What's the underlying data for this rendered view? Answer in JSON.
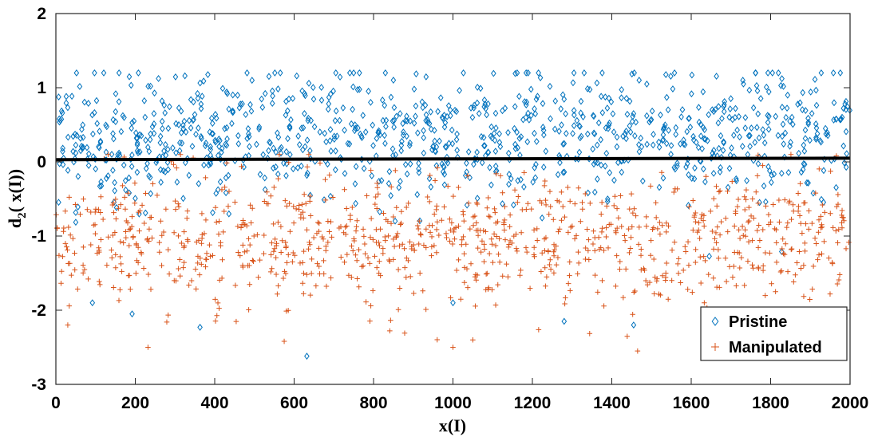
{
  "chart_data": {
    "type": "scatter",
    "title": "",
    "xlabel": "x(I)",
    "ylabel_main": "d",
    "ylabel_sub": "2",
    "ylabel_rest": "( x(I))",
    "xlim": [
      0,
      2000
    ],
    "ylim": [
      -3,
      2
    ],
    "xticks": [
      "0",
      "200",
      "400",
      "600",
      "800",
      "1000",
      "1200",
      "1400",
      "1600",
      "1800",
      "2000"
    ],
    "yticks": [
      "2",
      "1",
      "0",
      "-1",
      "-2",
      "-3"
    ],
    "threshold": {
      "y_start": 0.03,
      "y_end": 0.05,
      "color": "#000000"
    },
    "legend_position": "bottom-right",
    "series": [
      {
        "name": "Pristine",
        "marker": "diamond",
        "color": "#0072BD",
        "count": 1000,
        "center": 0.35,
        "spread": 0.45,
        "min": -2.62,
        "max": 1.2,
        "outliers": [
          {
            "x": 325,
            "y": 1.16
          },
          {
            "x": 705,
            "y": 1.2
          },
          {
            "x": 1730,
            "y": 1.1
          },
          {
            "x": 494,
            "y": 1.1
          },
          {
            "x": 632,
            "y": -2.62
          },
          {
            "x": 363,
            "y": -2.23
          },
          {
            "x": 1280,
            "y": -2.15
          },
          {
            "x": 1455,
            "y": -2.2
          },
          {
            "x": 192,
            "y": -2.05
          },
          {
            "x": 1000,
            "y": -1.9
          },
          {
            "x": 92,
            "y": -1.9
          }
        ]
      },
      {
        "name": "Manipulated",
        "marker": "plus",
        "color": "#D95319",
        "count": 1000,
        "center": -1.05,
        "spread": 0.45,
        "min": -2.55,
        "max": 0.1,
        "outliers": [
          {
            "x": 232,
            "y": -2.5
          },
          {
            "x": 1465,
            "y": -2.55
          },
          {
            "x": 1000,
            "y": -2.5
          },
          {
            "x": 30,
            "y": -2.2
          },
          {
            "x": 575,
            "y": -2.42
          },
          {
            "x": 1050,
            "y": -2.4
          }
        ]
      }
    ]
  }
}
